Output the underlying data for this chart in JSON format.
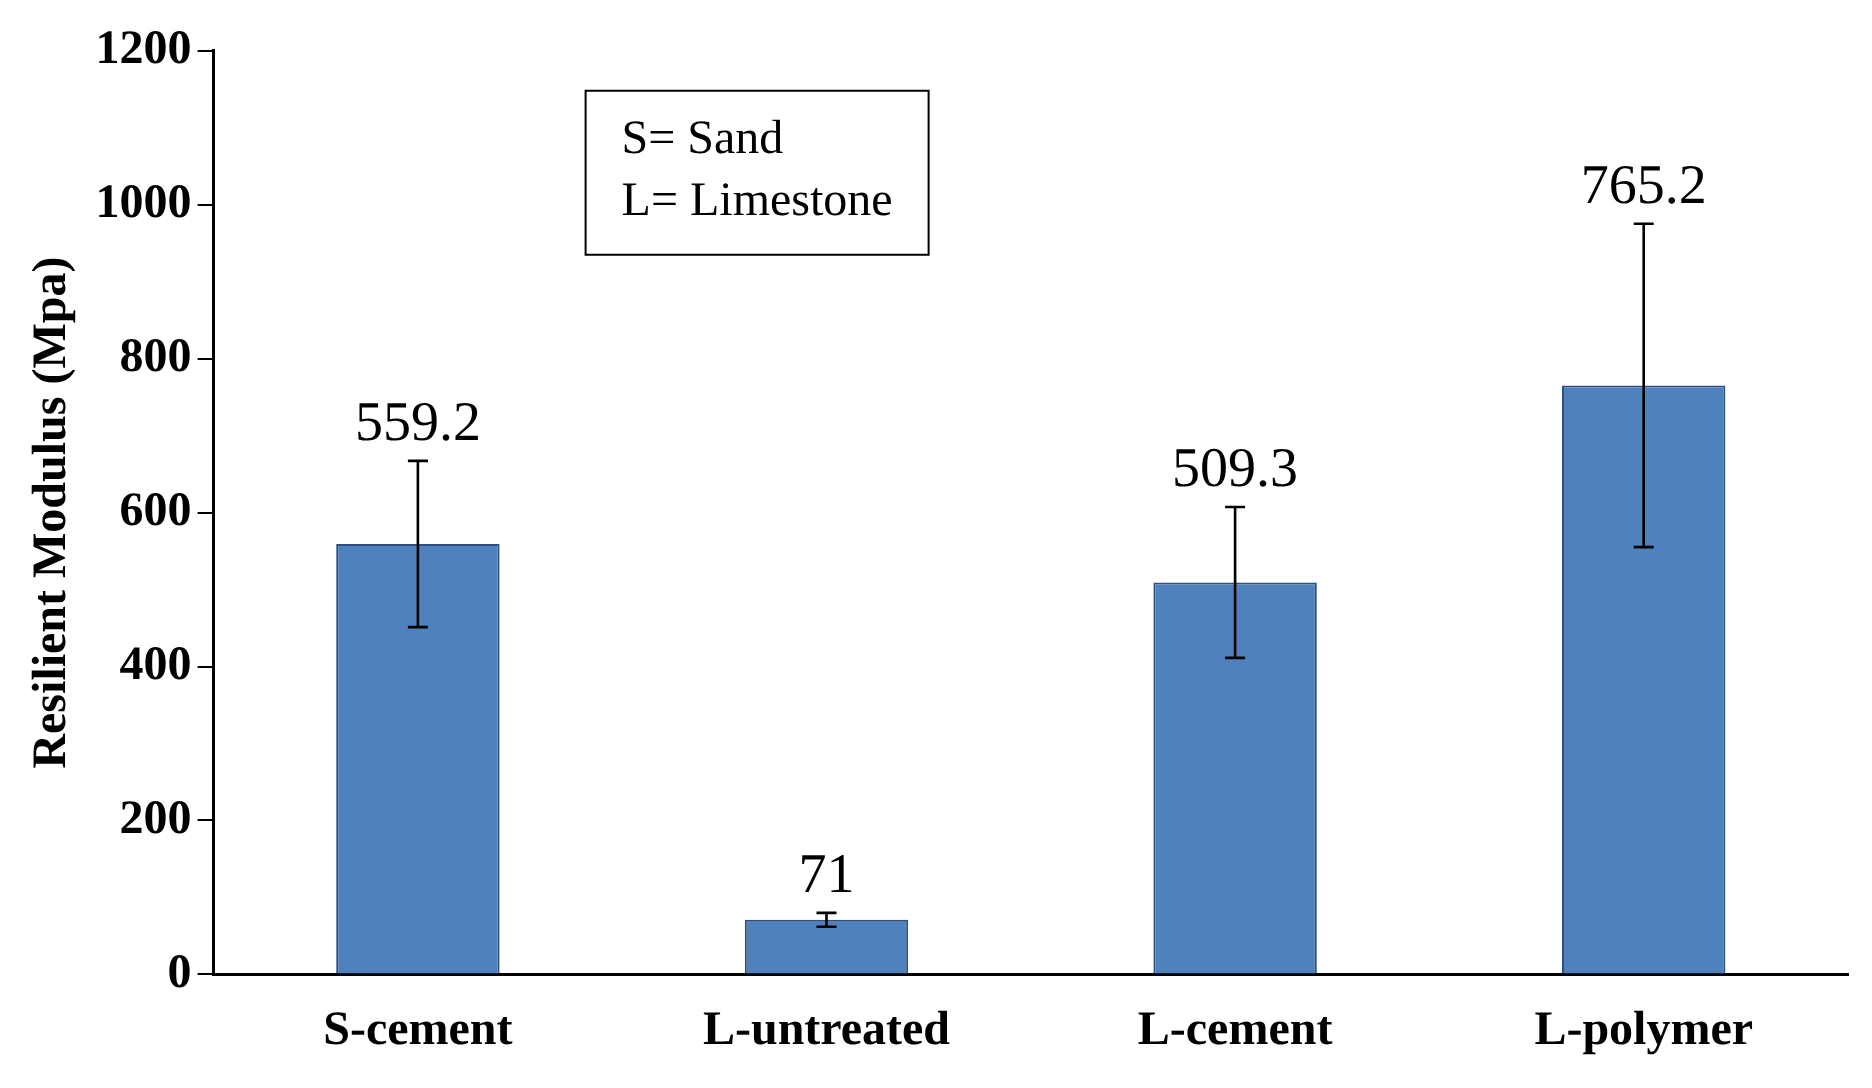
{
  "chart_data": {
    "type": "bar",
    "ylabel": "Resilient Modulus (Mpa)",
    "categories": [
      "S-cement",
      "L-untreated",
      "L-cement",
      "L-polymer"
    ],
    "values": [
      559.2,
      71,
      509.3,
      765.2
    ],
    "errors": [
      108,
      9,
      98,
      210
    ],
    "color": "#4f81bd",
    "ylim": [
      0,
      1200
    ],
    "yticks": [
      0,
      200,
      400,
      600,
      800,
      1000,
      1200
    ],
    "grid": false,
    "legend": false,
    "data_labels": true,
    "annotations": [
      "S= Sand\nL= Limestone"
    ]
  }
}
